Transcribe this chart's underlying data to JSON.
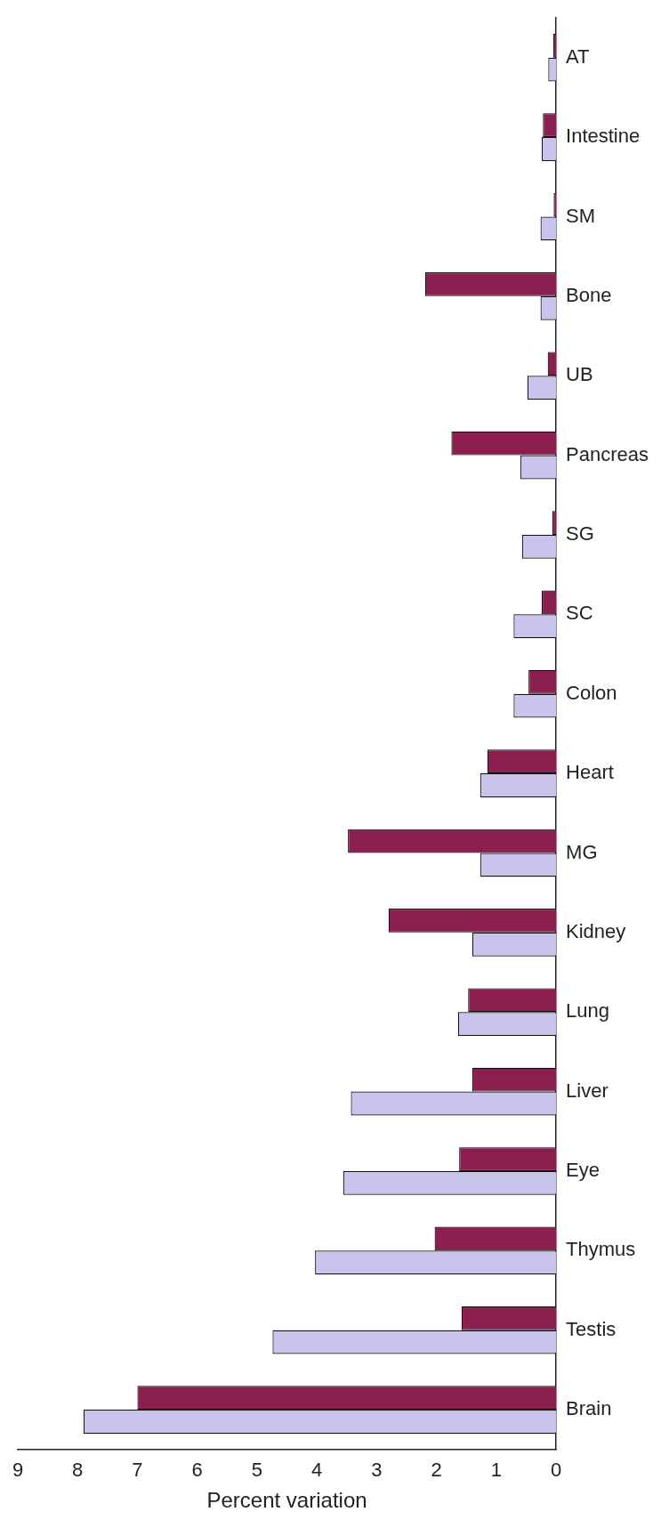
{
  "chart_data": {
    "type": "bar",
    "orientation": "horizontal",
    "xlabel": "Percent variation",
    "categories": [
      "AT",
      "Intestine",
      "SM",
      "Bone",
      "UB",
      "Pancreas",
      "SG",
      "SC",
      "Colon",
      "Heart",
      "MG",
      "Kidney",
      "Lung",
      "Liver",
      "Eye",
      "Thymus",
      "Testis",
      "Brain"
    ],
    "series": [
      {
        "color": "#8b2050",
        "values": [
          0.05,
          0.22,
          0.04,
          2.19,
          0.14,
          1.75,
          0.06,
          0.24,
          0.46,
          1.15,
          3.48,
          2.8,
          1.47,
          1.4,
          1.62,
          2.03,
          1.58,
          7.0
        ]
      },
      {
        "color": "#c8c4ec",
        "values": [
          0.13,
          0.24,
          0.26,
          0.26,
          0.48,
          0.6,
          0.57,
          0.71,
          0.71,
          1.27,
          1.27,
          1.4,
          1.64,
          3.43,
          3.56,
          4.03,
          4.74,
          7.9
        ]
      }
    ],
    "xlim": [
      9,
      0
    ],
    "xticks": [
      0,
      1,
      2,
      3,
      4,
      5,
      6,
      7,
      8,
      9
    ],
    "grid": false,
    "legend": false
  }
}
